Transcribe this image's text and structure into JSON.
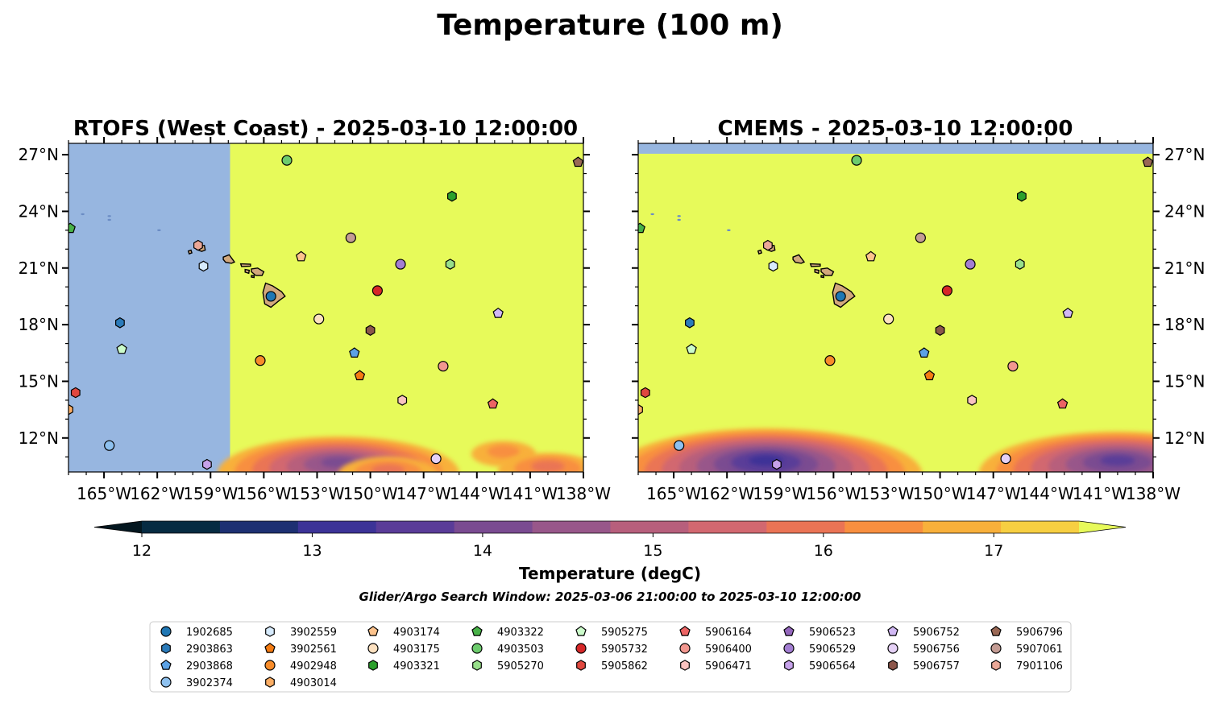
{
  "figure": {
    "title": "Temperature (100 m)",
    "search_window": "Glider/Argo Search Window: 2025-03-06 21:00:00 to 2025-03-10 12:00:00"
  },
  "colorbar": {
    "label": "Temperature (degC)",
    "min": 12,
    "max": 17.5,
    "ticks": [
      "12",
      "13",
      "14",
      "15",
      "16",
      "17"
    ],
    "tick_values": [
      12,
      13,
      14,
      15,
      16,
      17
    ],
    "colors": [
      "#062b42",
      "#1d3072",
      "#3c3397",
      "#5a3c98",
      "#7a4b91",
      "#98578a",
      "#b75f7c",
      "#d26870",
      "#ea7455",
      "#f88f40",
      "#f8b03b",
      "#f7cf42"
    ],
    "under_color": "#03161f",
    "over_color": "#e7fa5a"
  },
  "colors": {
    "no_data": "#97b6e0",
    "warm_fill": "#e7fa5a",
    "land": "#d2a87c"
  },
  "map": {
    "lon_range": [
      -167,
      -138
    ],
    "lat_range": [
      10.2,
      27.6
    ],
    "lon_ticks": [
      -165,
      -162,
      -159,
      -156,
      -153,
      -150,
      -147,
      -144,
      -141,
      -138
    ],
    "lon_tick_labels": [
      "165°W",
      "162°W",
      "159°W",
      "156°W",
      "153°W",
      "150°W",
      "147°W",
      "144°W",
      "141°W",
      "138°W"
    ],
    "lat_ticks": [
      12,
      15,
      18,
      21,
      24,
      27
    ],
    "lat_tick_labels": [
      "12°N",
      "15°N",
      "18°N",
      "21°N",
      "24°N",
      "27°N"
    ]
  },
  "panels": [
    {
      "title": "RTOFS (West Coast) - 2025-03-10 12:00:00",
      "no_data_west_of_lon": -157.9,
      "lat_axis_side": "left"
    },
    {
      "title": "CMEMS - 2025-03-10 12:00:00",
      "no_data_north_of_lat": 27.05,
      "lat_axis_side": "right"
    }
  ],
  "chart_data": [
    {
      "type": "heatmap",
      "title": "RTOFS (West Coast) - 2025-03-10 12:00:00",
      "variable": "Temperature",
      "units": "degC",
      "cold_features": [
        {
          "lon": -151.8,
          "lat": 10.8,
          "min_temp": 14.0
        },
        {
          "lon": -149.0,
          "lat": 10.4,
          "min_temp": 16.0
        },
        {
          "lon": -142.5,
          "lat": 11.4,
          "min_temp": 16.5
        },
        {
          "lon": -140.0,
          "lat": 10.6,
          "min_temp": 16.0
        }
      ]
    },
    {
      "type": "heatmap",
      "title": "CMEMS - 2025-03-10 12:00:00",
      "variable": "Temperature",
      "units": "degC",
      "cold_features": [
        {
          "lon": -159.8,
          "lat": 10.9,
          "min_temp": 13.0
        },
        {
          "lon": -140.0,
          "lat": 10.9,
          "min_temp": 13.5
        }
      ]
    },
    {
      "type": "scatter",
      "platforms": [
        {
          "id": "1902685",
          "marker": "circle",
          "color": "#1f77b4",
          "lon": -155.6,
          "lat": 19.5
        },
        {
          "id": "2903863",
          "marker": "hexagon",
          "color": "#2b7bba",
          "lon": -164.1,
          "lat": 18.1
        },
        {
          "id": "2903868",
          "marker": "pentagon",
          "color": "#5ca2e5",
          "lon": -150.9,
          "lat": 16.5
        },
        {
          "id": "3902374",
          "marker": "circle",
          "color": "#8ec1ef",
          "lon": -164.7,
          "lat": 11.6
        },
        {
          "id": "3902559",
          "marker": "hexagon",
          "color": "#d7ebfd",
          "lon": -159.4,
          "lat": 21.1
        },
        {
          "id": "3902561",
          "marker": "pentagon",
          "color": "#f47b12",
          "lon": -150.6,
          "lat": 15.3
        },
        {
          "id": "4902948",
          "marker": "circle",
          "color": "#f88c2a",
          "lon": -156.2,
          "lat": 16.1
        },
        {
          "id": "4903014",
          "marker": "hexagon",
          "color": "#fbad64",
          "lon": -167.0,
          "lat": 13.5
        },
        {
          "id": "4903174",
          "marker": "pentagon",
          "color": "#fdc38c",
          "lon": -153.9,
          "lat": 21.6
        },
        {
          "id": "4903175",
          "marker": "circle",
          "color": "#fde1c0",
          "lon": -152.9,
          "lat": 18.3
        },
        {
          "id": "4903321",
          "marker": "hexagon",
          "color": "#2ca02c",
          "lon": -145.4,
          "lat": 24.8
        },
        {
          "id": "4903322",
          "marker": "pentagon",
          "color": "#48b248",
          "lon": -166.9,
          "lat": 23.1
        },
        {
          "id": "4903503",
          "marker": "circle",
          "color": "#6dcc6d",
          "lon": -154.7,
          "lat": 26.7
        },
        {
          "id": "5905270",
          "marker": "hexagon",
          "color": "#98df8a",
          "lon": -145.5,
          "lat": 21.2
        },
        {
          "id": "5905275",
          "marker": "pentagon",
          "color": "#ccfccb",
          "lon": -164.0,
          "lat": 16.7
        },
        {
          "id": "5905732",
          "marker": "circle",
          "color": "#d62728",
          "lon": -149.6,
          "lat": 19.8
        },
        {
          "id": "5905862",
          "marker": "hexagon",
          "color": "#e0483f",
          "lon": -166.6,
          "lat": 14.4
        },
        {
          "id": "5906164",
          "marker": "pentagon",
          "color": "#ec6464",
          "lon": -143.1,
          "lat": 13.8
        },
        {
          "id": "5906400",
          "marker": "circle",
          "color": "#f2978f",
          "lon": -145.9,
          "lat": 15.8
        },
        {
          "id": "5906471",
          "marker": "hexagon",
          "color": "#f9c3c0",
          "lon": -148.2,
          "lat": 14.0
        },
        {
          "id": "5906523",
          "marker": "pentagon",
          "color": "#9467bd",
          "lon": -167.0,
          "lat": 9.9
        },
        {
          "id": "5906529",
          "marker": "circle",
          "color": "#a37ed2",
          "lon": -148.3,
          "lat": 21.2
        },
        {
          "id": "5906564",
          "marker": "hexagon",
          "color": "#c6a2ea",
          "lon": -159.2,
          "lat": 10.6
        },
        {
          "id": "5906752",
          "marker": "pentagon",
          "color": "#d1b8f4",
          "lon": -142.8,
          "lat": 18.6
        },
        {
          "id": "5906756",
          "marker": "circle",
          "color": "#e5d1f6",
          "lon": -146.3,
          "lat": 10.9
        },
        {
          "id": "5906757",
          "marker": "hexagon",
          "color": "#8c564b",
          "lon": -150.0,
          "lat": 17.7
        },
        {
          "id": "5906796",
          "marker": "pentagon",
          "color": "#9a6855",
          "lon": -138.3,
          "lat": 26.6
        },
        {
          "id": "5907061",
          "marker": "circle",
          "color": "#c49c94",
          "lon": -151.1,
          "lat": 22.6
        },
        {
          "id": "7901106",
          "marker": "hexagon",
          "color": "#eba898",
          "lon": -159.7,
          "lat": 22.2
        }
      ]
    }
  ]
}
